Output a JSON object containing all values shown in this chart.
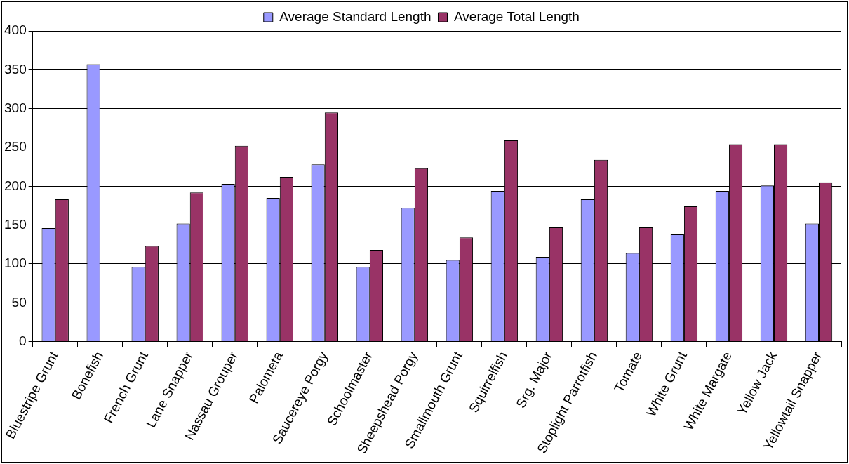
{
  "chart_data": {
    "type": "bar",
    "categories": [
      "Bluestripe Grunt",
      "Bonefish",
      "French Grunt",
      "Lane Snapper",
      "Nassau Grouper",
      "Palometa",
      "Saucereye Porgy",
      "Schoolmaster",
      "Sheepshead Porgy",
      "Smallmouth Grunt",
      "Squirrelfish",
      "Srg. Major",
      "Stoplight Parrotfish",
      "Tomate",
      "White Grunt",
      "White Margate",
      "Yellow Jack",
      "Yellowtail Snapper"
    ],
    "series": [
      {
        "name": "Average Standard Length",
        "color": "#9999ff",
        "values": [
          146,
          357,
          96,
          152,
          203,
          185,
          228,
          96,
          172,
          105,
          194,
          109,
          183,
          114,
          138,
          194,
          201,
          152
        ]
      },
      {
        "name": "Average Total Length",
        "color": "#993366",
        "values": [
          183,
          null,
          123,
          192,
          252,
          212,
          295,
          118,
          223,
          134,
          259,
          147,
          234,
          147,
          174,
          254,
          254,
          205
        ]
      }
    ],
    "ylim": [
      0,
      400
    ],
    "yticks": [
      0,
      50,
      100,
      150,
      200,
      250,
      300,
      350,
      400
    ],
    "grid": "y",
    "legend": "top"
  }
}
